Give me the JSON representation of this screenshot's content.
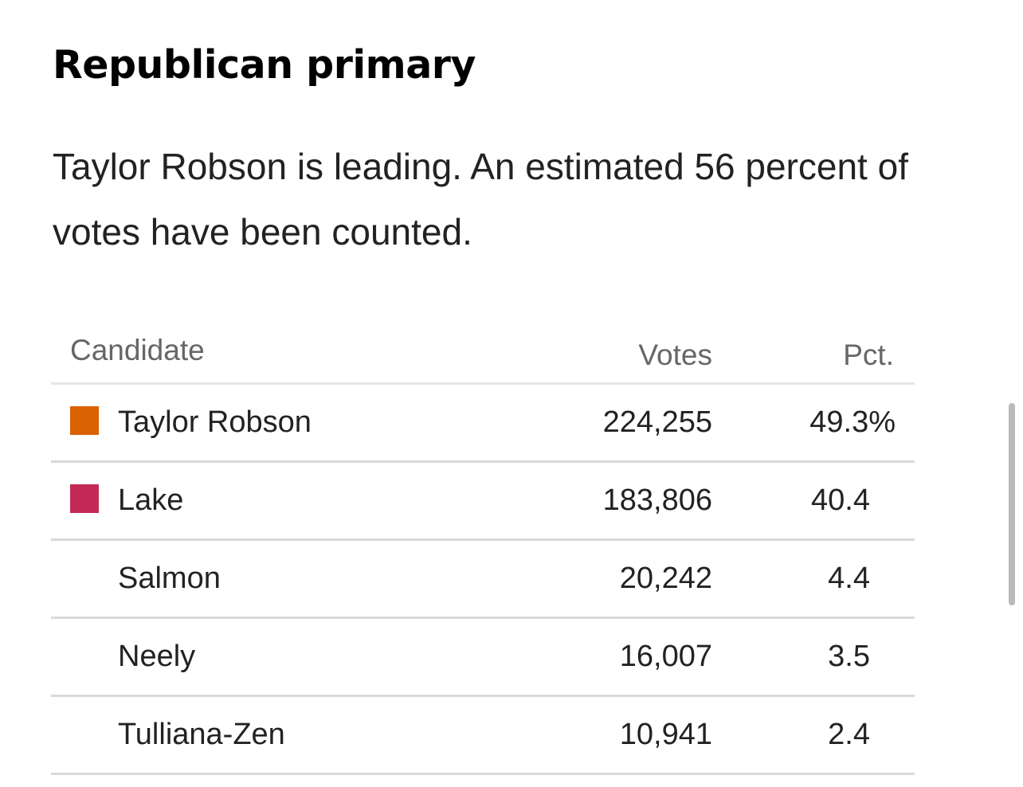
{
  "heading": "Republican primary",
  "summary": "Taylor Robson is leading. An estimated 56 percent of votes have been counted.",
  "table": {
    "headers": {
      "candidate": "Candidate",
      "votes": "Votes",
      "pct": "Pct."
    },
    "rows": [
      {
        "name": "Taylor Robson",
        "votes": "224,255",
        "pct": "49.3%",
        "color": "#DB6200"
      },
      {
        "name": "Lake",
        "votes": "183,806",
        "pct": "40.4",
        "color": "#C42A56"
      },
      {
        "name": "Salmon",
        "votes": "20,242",
        "pct": "4.4",
        "color": null
      },
      {
        "name": "Neely",
        "votes": "16,007",
        "pct": "3.5",
        "color": null
      },
      {
        "name": "Tulliana-Zen",
        "votes": "10,941",
        "pct": "2.4",
        "color": null
      }
    ]
  }
}
